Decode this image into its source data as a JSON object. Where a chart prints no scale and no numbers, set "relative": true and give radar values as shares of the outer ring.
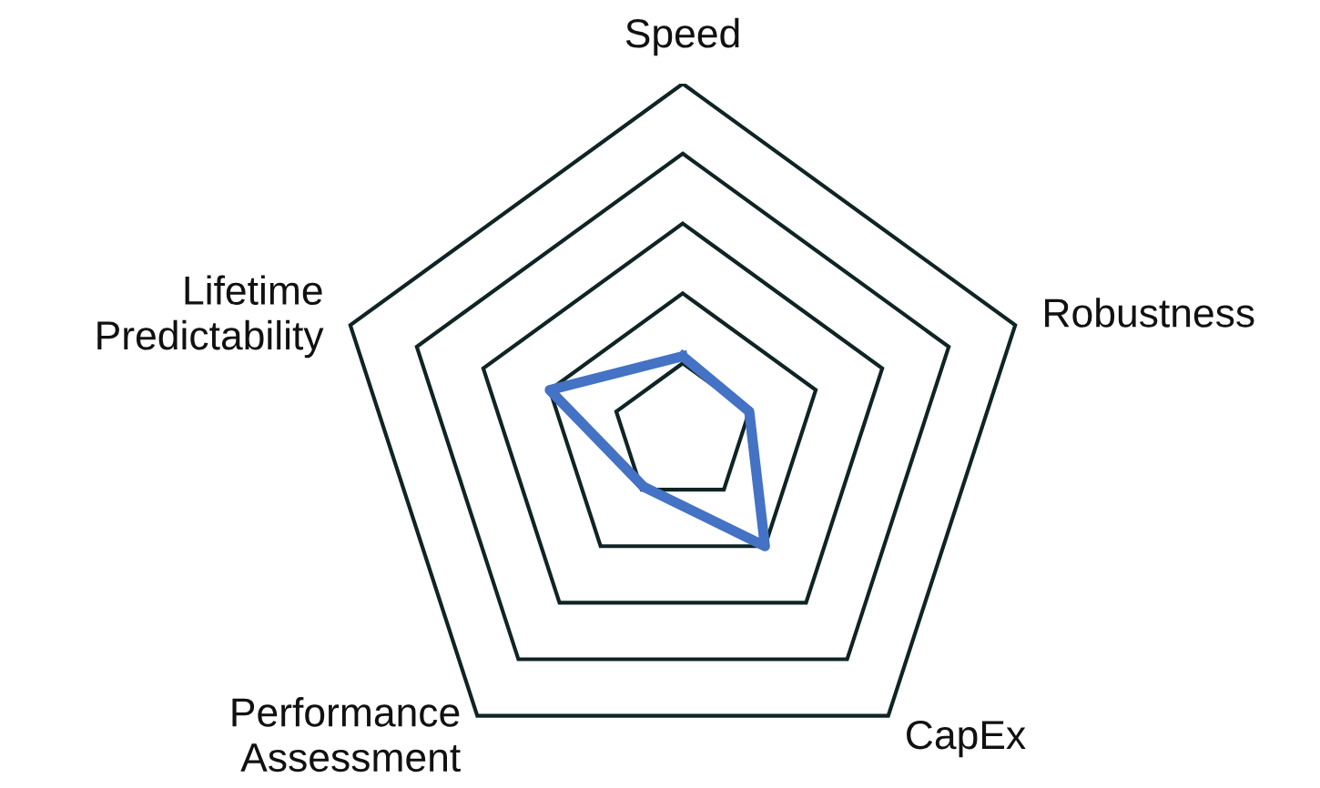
{
  "chart_data": {
    "type": "radar",
    "relative": true,
    "grid": true,
    "categories": [
      "Speed",
      "Robustness",
      "CapEx",
      "Performance\nAssessment",
      "Lifetime\nPredictability"
    ],
    "series": [
      {
        "color": "#4472c4",
        "values": [
          0.22,
          0.2,
          0.4,
          0.19,
          0.4
        ]
      }
    ]
  }
}
